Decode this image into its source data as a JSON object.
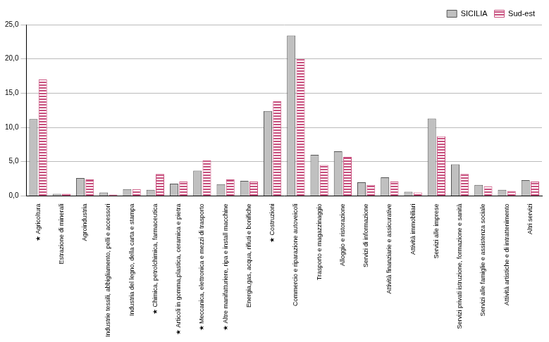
{
  "chart_data": {
    "type": "bar",
    "categories": [
      "★ Agricoltura",
      "Estrazione di minerali",
      "Agroindustria",
      "Industrie tessili, abbigliamento, pelli e accessori",
      "Industria del legno, della carta e stampa",
      "★ Chimica, petrolchimica, farmaceutica",
      "★ Articoli in gomma,plastica, ceramica e pietra",
      "★ Meccanica, elettronica e mezzi di trasporto",
      "★ Altre manifatturiere, ripa e install macchine",
      "Energia,gas, acqua, rifiuti e bonifiche",
      "★ Costruzioni",
      "Commercio e riparazione autoveicoli",
      "Trasporto e magazzinaggio",
      "Alloggio e ristorazione",
      "Servizi di informazione",
      "Attività finanziarie e assicurative",
      "Attività immobiliari",
      "Servizi alle imprese",
      "Servizi privati istruzione, formazione e sanità",
      "Servizi alle famiglie e assistenza sociale",
      "Attività artistiche e di intrattenimento",
      "Altri servizi"
    ],
    "series": [
      {
        "name": "SICILIA",
        "color": "#c0c0c0",
        "values": [
          11.2,
          0.3,
          2.6,
          0.5,
          1.0,
          0.9,
          1.8,
          3.7,
          1.7,
          2.2,
          12.4,
          23.4,
          6.0,
          6.5,
          2.0,
          2.7,
          0.6,
          11.3,
          4.6,
          1.6,
          0.9,
          2.3
        ]
      },
      {
        "name": "Sud-est",
        "color": "#c8507e",
        "values": [
          17.0,
          0.3,
          2.4,
          0.2,
          1.0,
          3.2,
          2.1,
          5.2,
          2.4,
          2.1,
          13.8,
          20.0,
          4.5,
          5.7,
          1.6,
          2.1,
          0.5,
          8.7,
          3.2,
          1.4,
          0.7,
          2.1
        ]
      }
    ],
    "ylim": [
      0,
      25
    ],
    "yticks": [
      {
        "value": 0,
        "label": "0,0"
      },
      {
        "value": 5,
        "label": "5,0"
      },
      {
        "value": 10,
        "label": "10,0"
      },
      {
        "value": 15,
        "label": "15,0"
      },
      {
        "value": 20,
        "label": "20,0"
      },
      {
        "value": 25,
        "label": "25,0"
      }
    ],
    "grid": true,
    "legend": "upper right"
  }
}
